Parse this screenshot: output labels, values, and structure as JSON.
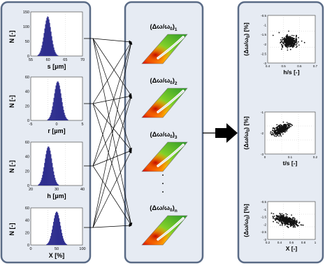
{
  "colors": {
    "panel_fill": "#e6ebf3",
    "panel_border": "#5a6b86",
    "histogram_fill": "#2f2f8f",
    "scatter_point": "#111111",
    "arrow": "#000000"
  },
  "left_panel": {
    "histograms": [
      {
        "ylabel": "N [-]",
        "xlabel": "s [µm]",
        "ticks_x": [
          "55",
          "60",
          "65",
          "70"
        ],
        "ticks_y": [
          "0",
          "50",
          "100",
          "150"
        ]
      },
      {
        "ylabel": "N [-]",
        "xlabel": "r [µm]",
        "ticks_x": [
          "-5",
          "0",
          "5"
        ],
        "ticks_y": [
          "0",
          "20",
          "40",
          "60"
        ]
      },
      {
        "ylabel": "N [-]",
        "xlabel": "h [µm]",
        "ticks_x": [
          "20",
          "30",
          "40"
        ],
        "ticks_y": [
          "0",
          "20",
          "40",
          "60"
        ]
      },
      {
        "ylabel": "N [-]",
        "xlabel": "X [%]",
        "ticks_x": [
          "0",
          "50",
          "100"
        ],
        "ticks_y": [
          "0",
          "20",
          "40",
          "60"
        ]
      }
    ]
  },
  "middle_panel": {
    "items": [
      {
        "label_base": "(Δω/ω",
        "label_sub0": "0",
        "label_close": ")",
        "label_sub": "1"
      },
      {
        "label_base": "(Δω/ω",
        "label_sub0": "0",
        "label_close": ")",
        "label_sub": "2"
      },
      {
        "label_base": "(Δω/ω",
        "label_sub0": "0",
        "label_close": ")",
        "label_sub": "3"
      },
      {
        "label_base": "(Δω/ω",
        "label_sub0": "0",
        "label_close": ")",
        "label_sub": "n"
      }
    ],
    "ellipsis": "."
  },
  "right_panel": {
    "scatters": [
      {
        "ylabel_base": "(Δω/ω",
        "ylabel_sub": "0",
        "ylabel_tail": ") [%]",
        "xlabel": "h/s [-]",
        "ticks_x": [
          "0.4",
          "0.5",
          "0.6",
          "0.7"
        ],
        "ticks_y": [
          "-0.5",
          "-1",
          "-1.5",
          "-2",
          "-2.5",
          "-3"
        ]
      },
      {
        "ylabel_base": "(Δω/ω",
        "ylabel_sub": "0",
        "ylabel_tail": ") [%]",
        "xlabel": "t/s [-]",
        "ticks_x": [
          "0",
          "0.1",
          "0.2"
        ],
        "ticks_y": [
          "-1",
          "-2",
          "-3"
        ]
      },
      {
        "ylabel_base": "(Δω/ω",
        "ylabel_sub": "0",
        "ylabel_tail": ") [%]",
        "xlabel": "X [-]",
        "ticks_x": [
          "0.2",
          "0.4",
          "0.6",
          "0.8",
          "1"
        ],
        "ticks_y": [
          "-0.5",
          "-1",
          "-1.5",
          "-2",
          "-2.5",
          "-3"
        ]
      }
    ]
  }
}
